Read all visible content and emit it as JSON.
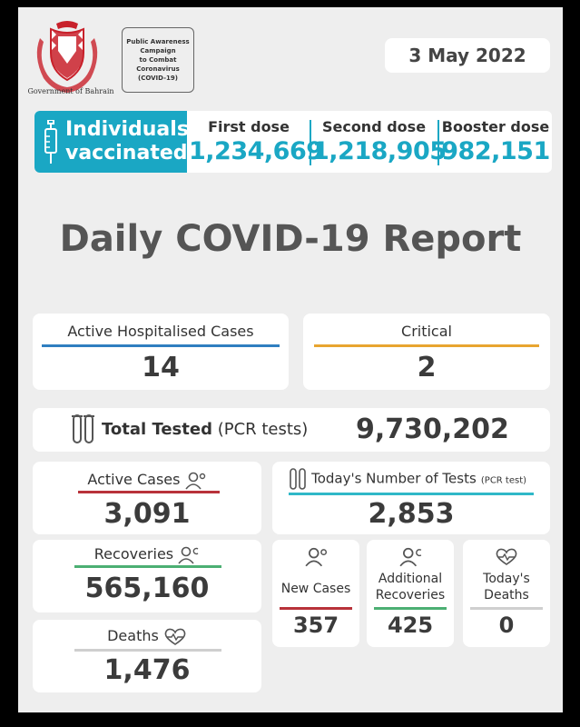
{
  "header": {
    "logo_caption": "Government of Bahrain",
    "campaign_text": "Public Awareness\nCampaign\nto Combat\nCoronavirus\n(COVID-19)",
    "date": "3 May 2022"
  },
  "vaccination": {
    "label_line1": "Individuals",
    "label_line2": "vaccinated",
    "first_dose_label": "First dose",
    "first_dose_value": "1,234,669",
    "second_dose_label": "Second dose",
    "second_dose_value": "1,218,905",
    "booster_dose_label": "Booster dose",
    "booster_dose_value": "982,151"
  },
  "report_title": "Daily COVID-19 Report",
  "hospitalised": {
    "label": "Active Hospitalised Cases",
    "value": "14"
  },
  "critical": {
    "label": "Critical",
    "value": "2"
  },
  "total_tested": {
    "label": "Total Tested",
    "sub": "(PCR tests)",
    "value": "9,730,202"
  },
  "active_cases": {
    "label": "Active Cases",
    "value": "3,091"
  },
  "todays_tests": {
    "label": "Today's Number of Tests",
    "sub": "(PCR test)",
    "value": "2,853"
  },
  "recoveries": {
    "label": "Recoveries",
    "value": "565,160"
  },
  "deaths": {
    "label": "Deaths",
    "value": "1,476"
  },
  "new_cases": {
    "label": "New Cases",
    "value": "357"
  },
  "additional_recoveries": {
    "label_line1": "Additional",
    "label_line2": "Recoveries",
    "value": "425"
  },
  "todays_deaths": {
    "label_line1": "Today's",
    "label_line2": "Deaths",
    "value": "0"
  },
  "colors": {
    "accent_blue": "#1aa7c4",
    "hospital_bar": "#2f7fc0",
    "critical_bar": "#e8a530",
    "active_bar": "#b8323a",
    "tests_bar": "#2fb8c8",
    "recovery_bar": "#4caf73",
    "deaths_bar": "#cfcfcf"
  }
}
